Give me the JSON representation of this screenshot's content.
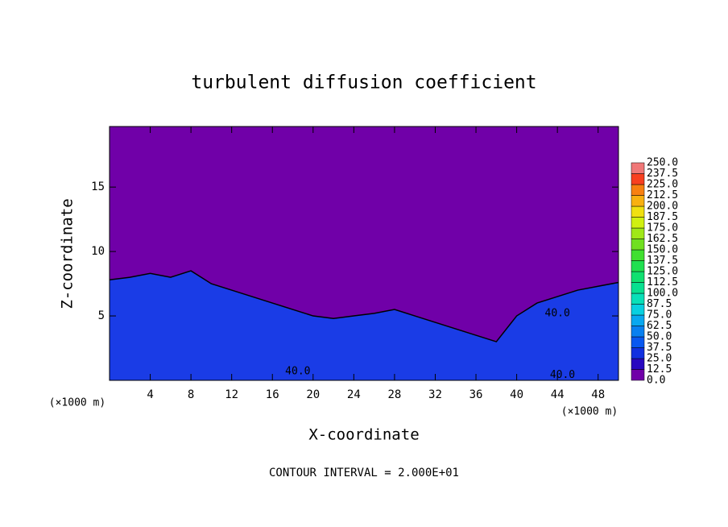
{
  "chart_data": {
    "type": "contour",
    "title": "turbulent diffusion coefficient",
    "x_label": "X-coordinate",
    "y_label": "Z-coordinate",
    "x_unit": "(×1000 m)",
    "footnote": "CONTOUR INTERVAL = 2.000E+01",
    "xlim": [
      0,
      50
    ],
    "xticks": [
      4,
      8,
      12,
      16,
      20,
      24,
      28,
      32,
      36,
      40,
      44,
      48
    ],
    "ylim": [
      0,
      19.7
    ],
    "yticks": [
      5,
      10,
      15
    ],
    "background_color": "#7000a8",
    "layer": {
      "color": "#1a3ce6",
      "x": [
        0,
        2,
        4,
        6,
        8,
        10,
        12,
        14,
        16,
        18,
        20,
        22,
        24,
        26,
        28,
        30,
        32,
        34,
        36,
        38,
        40,
        42,
        44,
        46,
        48,
        50
      ],
      "z": [
        7.8,
        8.0,
        8.3,
        8.0,
        8.5,
        7.5,
        7.0,
        6.5,
        6.0,
        5.5,
        5.0,
        4.8,
        5.0,
        5.2,
        5.5,
        5.0,
        4.5,
        4.0,
        3.5,
        3.0,
        5.0,
        6.0,
        6.5,
        7.0,
        7.3,
        7.6
      ]
    },
    "contour_labels": [
      {
        "text": "40.0",
        "x": 44,
        "z": 5.2
      },
      {
        "text": "40.0",
        "x": 18.5,
        "z": 0.7
      },
      {
        "text": "40.0",
        "x": 44.5,
        "z": 0.4
      }
    ],
    "levels": [
      {
        "value": 0,
        "label": "0.0"
      },
      {
        "value": 12.5,
        "label": "12.5"
      },
      {
        "value": 25,
        "label": "25.0"
      },
      {
        "value": 37.5,
        "label": "37.5"
      },
      {
        "value": 50,
        "label": "50.0"
      },
      {
        "value": 62.5,
        "label": "62.5"
      },
      {
        "value": 75,
        "label": "75.0"
      },
      {
        "value": 87.5,
        "label": "87.5"
      },
      {
        "value": 100,
        "label": "100.0"
      },
      {
        "value": 112.5,
        "label": "112.5"
      },
      {
        "value": 125,
        "label": "125.0"
      },
      {
        "value": 137.5,
        "label": "137.5"
      },
      {
        "value": 150,
        "label": "150.0"
      },
      {
        "value": 162.5,
        "label": "162.5"
      },
      {
        "value": 175,
        "label": "175.0"
      },
      {
        "value": 187.5,
        "label": "187.5"
      },
      {
        "value": 200,
        "label": "200.0"
      },
      {
        "value": 212.5,
        "label": "212.5"
      },
      {
        "value": 225,
        "label": "225.0"
      },
      {
        "value": 237.5,
        "label": "237.5"
      },
      {
        "value": 250,
        "label": "250.0"
      }
    ],
    "colors": [
      "#7000a8",
      "#2808c0",
      "#1030e0",
      "#0858f0",
      "#0880f0",
      "#08a8f0",
      "#08d0e0",
      "#08e0b8",
      "#08e090",
      "#10e070",
      "#20e050",
      "#40e030",
      "#70e020",
      "#a0e818",
      "#d0f010",
      "#f0e010",
      "#f8b010",
      "#f88010",
      "#f84020",
      "#f07878"
    ]
  }
}
